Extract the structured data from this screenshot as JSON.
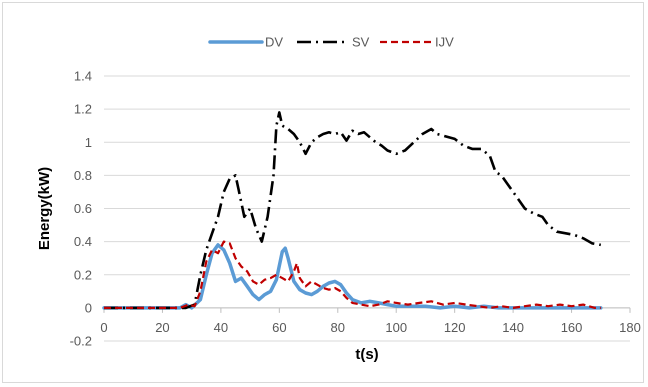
{
  "chart_data": {
    "type": "line",
    "title": "",
    "xlabel": "t(s)",
    "ylabel": "Energy(kW)",
    "xlim": [
      0,
      180
    ],
    "ylim": [
      -0.2,
      1.4
    ],
    "x_ticks": [
      0,
      20,
      40,
      60,
      80,
      100,
      120,
      140,
      160,
      180
    ],
    "y_ticks": [
      -0.2,
      0,
      0.2,
      0.4,
      0.6,
      0.8,
      1,
      1.2,
      1.4
    ],
    "y_tick_labels": [
      "-0.2",
      "0",
      "0.2",
      "0.4",
      "0.6",
      "0.8",
      "1",
      "1.2",
      "1.4"
    ],
    "grid": "horizontal",
    "legend_position": "top",
    "series": [
      {
        "name": "DV",
        "color": "#5b9bd5",
        "style": "solid",
        "points": [
          [
            0,
            0
          ],
          [
            10,
            0
          ],
          [
            20,
            0
          ],
          [
            26,
            0
          ],
          [
            28,
            0.02
          ],
          [
            30,
            0
          ],
          [
            33,
            0.05
          ],
          [
            35,
            0.2
          ],
          [
            37,
            0.33
          ],
          [
            39,
            0.38
          ],
          [
            41,
            0.35
          ],
          [
            43,
            0.27
          ],
          [
            45,
            0.16
          ],
          [
            47,
            0.18
          ],
          [
            49,
            0.13
          ],
          [
            51,
            0.08
          ],
          [
            53,
            0.05
          ],
          [
            55,
            0.08
          ],
          [
            57,
            0.1
          ],
          [
            59,
            0.17
          ],
          [
            61,
            0.34
          ],
          [
            62,
            0.36
          ],
          [
            63,
            0.3
          ],
          [
            65,
            0.16
          ],
          [
            67,
            0.11
          ],
          [
            69,
            0.09
          ],
          [
            71,
            0.08
          ],
          [
            73,
            0.1
          ],
          [
            75,
            0.13
          ],
          [
            77,
            0.15
          ],
          [
            79,
            0.16
          ],
          [
            81,
            0.14
          ],
          [
            83,
            0.09
          ],
          [
            85,
            0.05
          ],
          [
            88,
            0.03
          ],
          [
            91,
            0.04
          ],
          [
            94,
            0.03
          ],
          [
            97,
            0.02
          ],
          [
            100,
            0.01
          ],
          [
            105,
            0.01
          ],
          [
            110,
            0.01
          ],
          [
            115,
            0
          ],
          [
            120,
            0.01
          ],
          [
            125,
            0
          ],
          [
            130,
            0.01
          ],
          [
            135,
            0
          ],
          [
            140,
            0
          ],
          [
            145,
            0
          ],
          [
            150,
            0
          ],
          [
            155,
            0
          ],
          [
            160,
            0
          ],
          [
            165,
            0
          ],
          [
            170,
            0
          ]
        ]
      },
      {
        "name": "SV",
        "color": "#000000",
        "style": "dash-dot",
        "points": [
          [
            0,
            0
          ],
          [
            10,
            0
          ],
          [
            20,
            0
          ],
          [
            28,
            0
          ],
          [
            31,
            0.02
          ],
          [
            33,
            0.2
          ],
          [
            35,
            0.35
          ],
          [
            37,
            0.45
          ],
          [
            39,
            0.55
          ],
          [
            41,
            0.7
          ],
          [
            43,
            0.78
          ],
          [
            45,
            0.8
          ],
          [
            46,
            0.72
          ],
          [
            48,
            0.55
          ],
          [
            50,
            0.6
          ],
          [
            52,
            0.48
          ],
          [
            54,
            0.4
          ],
          [
            56,
            0.55
          ],
          [
            58,
            0.8
          ],
          [
            59,
            1.1
          ],
          [
            60,
            1.18
          ],
          [
            61,
            1.1
          ],
          [
            63,
            1.08
          ],
          [
            65,
            1.05
          ],
          [
            67,
            1.0
          ],
          [
            69,
            0.93
          ],
          [
            71,
            1.0
          ],
          [
            73,
            1.03
          ],
          [
            75,
            1.05
          ],
          [
            77,
            1.06
          ],
          [
            79,
            1.05
          ],
          [
            81,
            1.06
          ],
          [
            83,
            1.01
          ],
          [
            85,
            1.07
          ],
          [
            87,
            1.05
          ],
          [
            89,
            1.06
          ],
          [
            91,
            1.03
          ],
          [
            93,
            1.0
          ],
          [
            95,
            0.98
          ],
          [
            97,
            0.95
          ],
          [
            100,
            0.93
          ],
          [
            103,
            0.95
          ],
          [
            106,
            1.0
          ],
          [
            109,
            1.05
          ],
          [
            112,
            1.08
          ],
          [
            114,
            1.05
          ],
          [
            116,
            1.04
          ],
          [
            118,
            1.03
          ],
          [
            120,
            1.02
          ],
          [
            123,
            0.98
          ],
          [
            126,
            0.96
          ],
          [
            129,
            0.96
          ],
          [
            132,
            0.92
          ],
          [
            134,
            0.82
          ],
          [
            136,
            0.8
          ],
          [
            138,
            0.75
          ],
          [
            140,
            0.7
          ],
          [
            142,
            0.65
          ],
          [
            144,
            0.6
          ],
          [
            147,
            0.57
          ],
          [
            150,
            0.55
          ],
          [
            152,
            0.5
          ],
          [
            155,
            0.46
          ],
          [
            158,
            0.45
          ],
          [
            161,
            0.44
          ],
          [
            164,
            0.42
          ],
          [
            167,
            0.39
          ],
          [
            170,
            0.38
          ]
        ]
      },
      {
        "name": "IJV",
        "color": "#c00000",
        "style": "dashed",
        "points": [
          [
            0,
            0
          ],
          [
            10,
            0
          ],
          [
            20,
            0
          ],
          [
            26,
            0
          ],
          [
            29,
            0.02
          ],
          [
            31,
            0.01
          ],
          [
            33,
            0.1
          ],
          [
            35,
            0.28
          ],
          [
            37,
            0.35
          ],
          [
            39,
            0.33
          ],
          [
            41,
            0.4
          ],
          [
            43,
            0.39
          ],
          [
            45,
            0.3
          ],
          [
            47,
            0.25
          ],
          [
            49,
            0.22
          ],
          [
            51,
            0.16
          ],
          [
            53,
            0.14
          ],
          [
            55,
            0.17
          ],
          [
            57,
            0.18
          ],
          [
            59,
            0.2
          ],
          [
            61,
            0.18
          ],
          [
            63,
            0.16
          ],
          [
            65,
            0.22
          ],
          [
            66,
            0.27
          ],
          [
            67,
            0.18
          ],
          [
            69,
            0.13
          ],
          [
            71,
            0.16
          ],
          [
            73,
            0.14
          ],
          [
            75,
            0.12
          ],
          [
            77,
            0.11
          ],
          [
            79,
            0.12
          ],
          [
            81,
            0.1
          ],
          [
            83,
            0.06
          ],
          [
            85,
            0.03
          ],
          [
            88,
            0.02
          ],
          [
            91,
            0.01
          ],
          [
            94,
            0.02
          ],
          [
            97,
            0.04
          ],
          [
            100,
            0.03
          ],
          [
            104,
            0.02
          ],
          [
            108,
            0.03
          ],
          [
            112,
            0.04
          ],
          [
            116,
            0.02
          ],
          [
            120,
            0.03
          ],
          [
            124,
            0.02
          ],
          [
            128,
            0.01
          ],
          [
            132,
            0
          ],
          [
            136,
            0.01
          ],
          [
            140,
            0
          ],
          [
            144,
            0.01
          ],
          [
            148,
            0.02
          ],
          [
            152,
            0.01
          ],
          [
            156,
            0.02
          ],
          [
            160,
            0.01
          ],
          [
            164,
            0.02
          ],
          [
            168,
            0
          ],
          [
            170,
            0
          ]
        ]
      }
    ]
  }
}
